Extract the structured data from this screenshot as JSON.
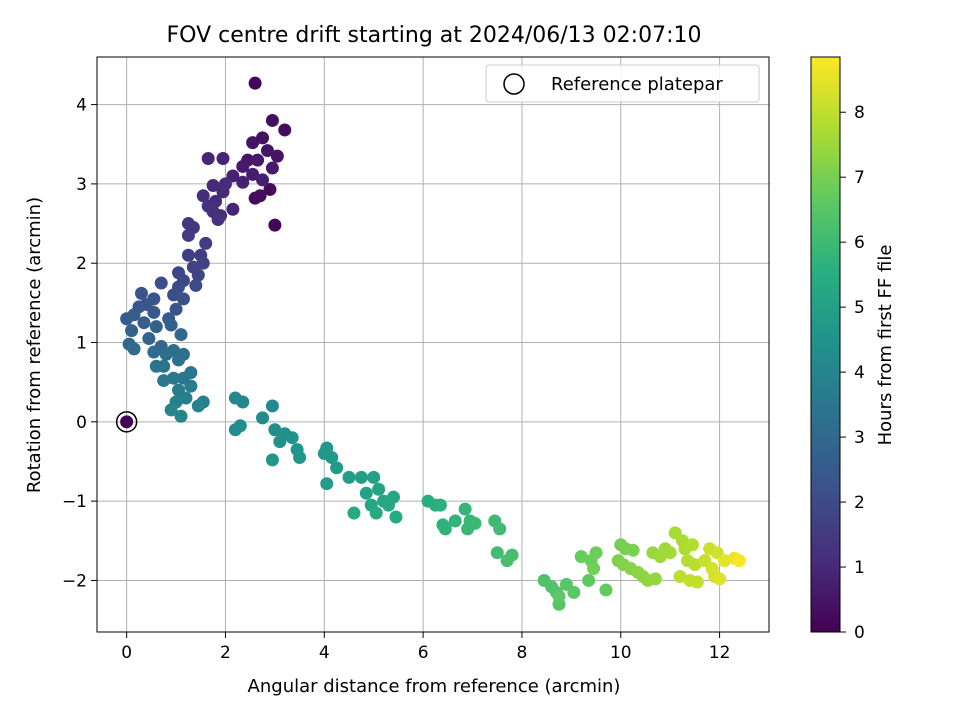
{
  "chart_data": {
    "type": "scatter",
    "title": "FOV centre drift starting at 2024/06/13 02:07:10",
    "xlabel": "Angular distance from reference (arcmin)",
    "ylabel": "Rotation from reference (arcmin)",
    "colorbar_label": "Hours from first FF file",
    "xlim": [
      -0.6,
      13.0
    ],
    "ylim": [
      -2.65,
      4.6
    ],
    "x_ticks": [
      0,
      2,
      4,
      6,
      8,
      10,
      12
    ],
    "y_ticks": [
      -2,
      -1,
      0,
      1,
      2,
      3,
      4
    ],
    "colorbar_range": [
      0,
      8.85
    ],
    "colorbar_ticks": [
      0,
      1,
      2,
      3,
      4,
      5,
      6,
      7,
      8
    ],
    "colormap": "viridis",
    "grid": true,
    "legend": {
      "placement": "top-right",
      "entries": [
        "Reference platepar"
      ]
    },
    "reference_point": {
      "x": 0,
      "y": 0
    },
    "points": [
      [
        2.6,
        4.27,
        0.1
      ],
      [
        3.0,
        2.48,
        0.15
      ],
      [
        2.9,
        2.93,
        0.2
      ],
      [
        2.6,
        2.82,
        0.25
      ],
      [
        2.7,
        2.85,
        0.3
      ],
      [
        3.2,
        3.68,
        0.3
      ],
      [
        2.95,
        3.8,
        0.35
      ],
      [
        2.75,
        3.58,
        0.4
      ],
      [
        2.55,
        3.52,
        0.45
      ],
      [
        3.05,
        3.35,
        0.45
      ],
      [
        2.85,
        3.42,
        0.5
      ],
      [
        2.45,
        3.3,
        0.55
      ],
      [
        2.65,
        3.3,
        0.6
      ],
      [
        2.95,
        3.2,
        0.6
      ],
      [
        2.35,
        3.22,
        0.65
      ],
      [
        2.55,
        3.12,
        0.7
      ],
      [
        2.75,
        3.05,
        0.75
      ],
      [
        2.35,
        3.02,
        0.8
      ],
      [
        2.15,
        3.1,
        0.85
      ],
      [
        1.95,
        3.32,
        0.9
      ],
      [
        1.65,
        3.32,
        0.95
      ],
      [
        2.15,
        2.68,
        0.9
      ],
      [
        1.95,
        2.9,
        1.0
      ],
      [
        1.75,
        2.98,
        1.05
      ],
      [
        2.0,
        3.0,
        1.1
      ],
      [
        1.8,
        2.78,
        1.1
      ],
      [
        1.55,
        2.85,
        1.15
      ],
      [
        1.75,
        2.65,
        1.2
      ],
      [
        1.9,
        2.6,
        1.2
      ],
      [
        1.65,
        2.72,
        1.25
      ],
      [
        1.85,
        2.55,
        1.3
      ],
      [
        1.25,
        2.5,
        1.4
      ],
      [
        1.35,
        2.45,
        1.45
      ],
      [
        1.25,
        2.35,
        1.5
      ],
      [
        1.6,
        2.25,
        1.55
      ],
      [
        1.5,
        2.1,
        1.6
      ],
      [
        1.25,
        2.1,
        1.65
      ],
      [
        1.55,
        2.0,
        1.7
      ],
      [
        1.35,
        1.95,
        1.75
      ],
      [
        1.45,
        1.85,
        1.8
      ],
      [
        1.05,
        1.88,
        1.85
      ],
      [
        1.15,
        1.78,
        1.9
      ],
      [
        1.4,
        1.72,
        1.95
      ],
      [
        1.05,
        1.7,
        2.0
      ],
      [
        0.95,
        1.6,
        2.05
      ],
      [
        0.7,
        1.75,
        2.1
      ],
      [
        1.15,
        1.55,
        2.15
      ],
      [
        1.0,
        1.42,
        2.2
      ],
      [
        0.3,
        1.62,
        2.25
      ],
      [
        0.55,
        1.55,
        2.3
      ],
      [
        0.4,
        1.48,
        2.35
      ],
      [
        0.25,
        1.45,
        2.4
      ],
      [
        0.55,
        1.38,
        2.45
      ],
      [
        0.85,
        1.3,
        2.5
      ],
      [
        0.15,
        1.35,
        2.55
      ],
      [
        0.0,
        1.3,
        2.6
      ],
      [
        0.35,
        1.25,
        2.65
      ],
      [
        0.6,
        1.2,
        2.7
      ],
      [
        0.1,
        1.15,
        2.75
      ],
      [
        0.9,
        1.22,
        2.8
      ],
      [
        0.45,
        1.05,
        2.85
      ],
      [
        0.7,
        0.95,
        2.9
      ],
      [
        1.1,
        1.1,
        2.95
      ],
      [
        0.05,
        0.98,
        3.0
      ],
      [
        0.15,
        0.92,
        3.05
      ],
      [
        0.55,
        0.88,
        3.1
      ],
      [
        0.8,
        0.85,
        3.15
      ],
      [
        0.95,
        0.9,
        3.2
      ],
      [
        1.15,
        0.85,
        3.25
      ],
      [
        1.05,
        0.78,
        3.3
      ],
      [
        0.75,
        0.7,
        3.35
      ],
      [
        0.6,
        0.7,
        3.4
      ],
      [
        1.3,
        0.62,
        3.45
      ],
      [
        1.15,
        0.55,
        3.5
      ],
      [
        0.75,
        0.52,
        3.55
      ],
      [
        0.95,
        0.55,
        3.6
      ],
      [
        1.05,
        0.4,
        3.65
      ],
      [
        1.3,
        0.45,
        3.7
      ],
      [
        1.2,
        0.3,
        3.75
      ],
      [
        1.0,
        0.25,
        3.8
      ],
      [
        1.55,
        0.25,
        3.85
      ],
      [
        1.45,
        0.2,
        3.9
      ],
      [
        0.9,
        0.15,
        3.95
      ],
      [
        1.1,
        0.07,
        4.0
      ],
      [
        2.2,
        0.3,
        4.05
      ],
      [
        2.35,
        0.25,
        4.1
      ],
      [
        2.95,
        0.2,
        4.15
      ],
      [
        2.75,
        0.05,
        4.2
      ],
      [
        2.3,
        -0.05,
        4.25
      ],
      [
        2.2,
        -0.1,
        4.3
      ],
      [
        3.0,
        -0.1,
        4.35
      ],
      [
        3.2,
        -0.15,
        4.4
      ],
      [
        3.35,
        -0.2,
        4.45
      ],
      [
        3.1,
        -0.25,
        4.5
      ],
      [
        3.45,
        -0.35,
        4.55
      ],
      [
        2.95,
        -0.48,
        4.6
      ],
      [
        3.5,
        -0.45,
        4.6
      ],
      [
        4.0,
        -0.4,
        4.65
      ],
      [
        4.05,
        -0.33,
        4.7
      ],
      [
        4.15,
        -0.45,
        4.75
      ],
      [
        4.25,
        -0.58,
        4.8
      ],
      [
        4.05,
        -0.78,
        4.85
      ],
      [
        4.5,
        -0.7,
        4.9
      ],
      [
        4.75,
        -0.7,
        4.95
      ],
      [
        5.0,
        -0.7,
        5.0
      ],
      [
        4.85,
        -0.9,
        5.05
      ],
      [
        5.1,
        -0.85,
        5.1
      ],
      [
        4.95,
        -1.05,
        5.15
      ],
      [
        5.2,
        -1.0,
        5.2
      ],
      [
        5.4,
        -0.95,
        5.25
      ],
      [
        5.3,
        -1.05,
        5.3
      ],
      [
        5.05,
        -1.15,
        5.35
      ],
      [
        4.6,
        -1.15,
        5.35
      ],
      [
        5.45,
        -1.2,
        5.4
      ],
      [
        6.1,
        -1.0,
        5.5
      ],
      [
        6.25,
        -1.05,
        5.55
      ],
      [
        6.35,
        -1.05,
        5.6
      ],
      [
        6.4,
        -1.3,
        5.65
      ],
      [
        6.45,
        -1.35,
        5.7
      ],
      [
        6.65,
        -1.25,
        5.75
      ],
      [
        6.85,
        -1.1,
        5.8
      ],
      [
        6.95,
        -1.25,
        5.85
      ],
      [
        6.9,
        -1.35,
        5.9
      ],
      [
        7.05,
        -1.28,
        5.95
      ],
      [
        7.45,
        -1.25,
        6.0
      ],
      [
        7.55,
        -1.35,
        6.05
      ],
      [
        7.5,
        -1.65,
        6.1
      ],
      [
        7.8,
        -1.68,
        6.15
      ],
      [
        7.7,
        -1.75,
        6.2
      ],
      [
        8.45,
        -2.0,
        6.3
      ],
      [
        8.6,
        -2.08,
        6.35
      ],
      [
        8.7,
        -2.15,
        6.4
      ],
      [
        8.75,
        -2.3,
        6.45
      ],
      [
        8.9,
        -2.05,
        6.5
      ],
      [
        9.05,
        -2.15,
        6.55
      ],
      [
        8.75,
        -2.2,
        6.6
      ],
      [
        9.35,
        -2.0,
        6.65
      ],
      [
        9.7,
        -2.12,
        6.7
      ],
      [
        9.2,
        -1.7,
        6.75
      ],
      [
        9.4,
        -1.75,
        6.8
      ],
      [
        9.5,
        -1.65,
        6.85
      ],
      [
        9.45,
        -1.85,
        6.9
      ],
      [
        10.0,
        -1.55,
        6.95
      ],
      [
        10.1,
        -1.6,
        7.0
      ],
      [
        10.25,
        -1.62,
        7.05
      ],
      [
        9.95,
        -1.75,
        7.1
      ],
      [
        10.05,
        -1.8,
        7.15
      ],
      [
        10.2,
        -1.85,
        7.2
      ],
      [
        10.35,
        -1.9,
        7.25
      ],
      [
        10.45,
        -1.95,
        7.3
      ],
      [
        10.55,
        -2.0,
        7.35
      ],
      [
        10.7,
        -1.98,
        7.4
      ],
      [
        10.65,
        -1.65,
        7.45
      ],
      [
        10.8,
        -1.7,
        7.5
      ],
      [
        10.9,
        -1.6,
        7.55
      ],
      [
        11.0,
        -1.65,
        7.6
      ],
      [
        11.1,
        -1.4,
        7.65
      ],
      [
        11.25,
        -1.5,
        7.7
      ],
      [
        11.3,
        -1.6,
        7.75
      ],
      [
        11.45,
        -1.55,
        7.8
      ],
      [
        11.35,
        -1.75,
        7.85
      ],
      [
        11.5,
        -1.8,
        7.9
      ],
      [
        11.2,
        -1.95,
        7.95
      ],
      [
        11.4,
        -2.0,
        8.0
      ],
      [
        11.55,
        -2.02,
        8.05
      ],
      [
        11.7,
        -1.75,
        8.1
      ],
      [
        11.8,
        -1.6,
        8.15
      ],
      [
        11.95,
        -1.65,
        8.2
      ],
      [
        11.85,
        -1.85,
        8.25
      ],
      [
        11.9,
        -1.95,
        8.3
      ],
      [
        12.0,
        -1.98,
        8.4
      ],
      [
        12.1,
        -1.75,
        8.5
      ],
      [
        12.3,
        -1.72,
        8.6
      ],
      [
        12.4,
        -1.75,
        8.75
      ]
    ]
  }
}
